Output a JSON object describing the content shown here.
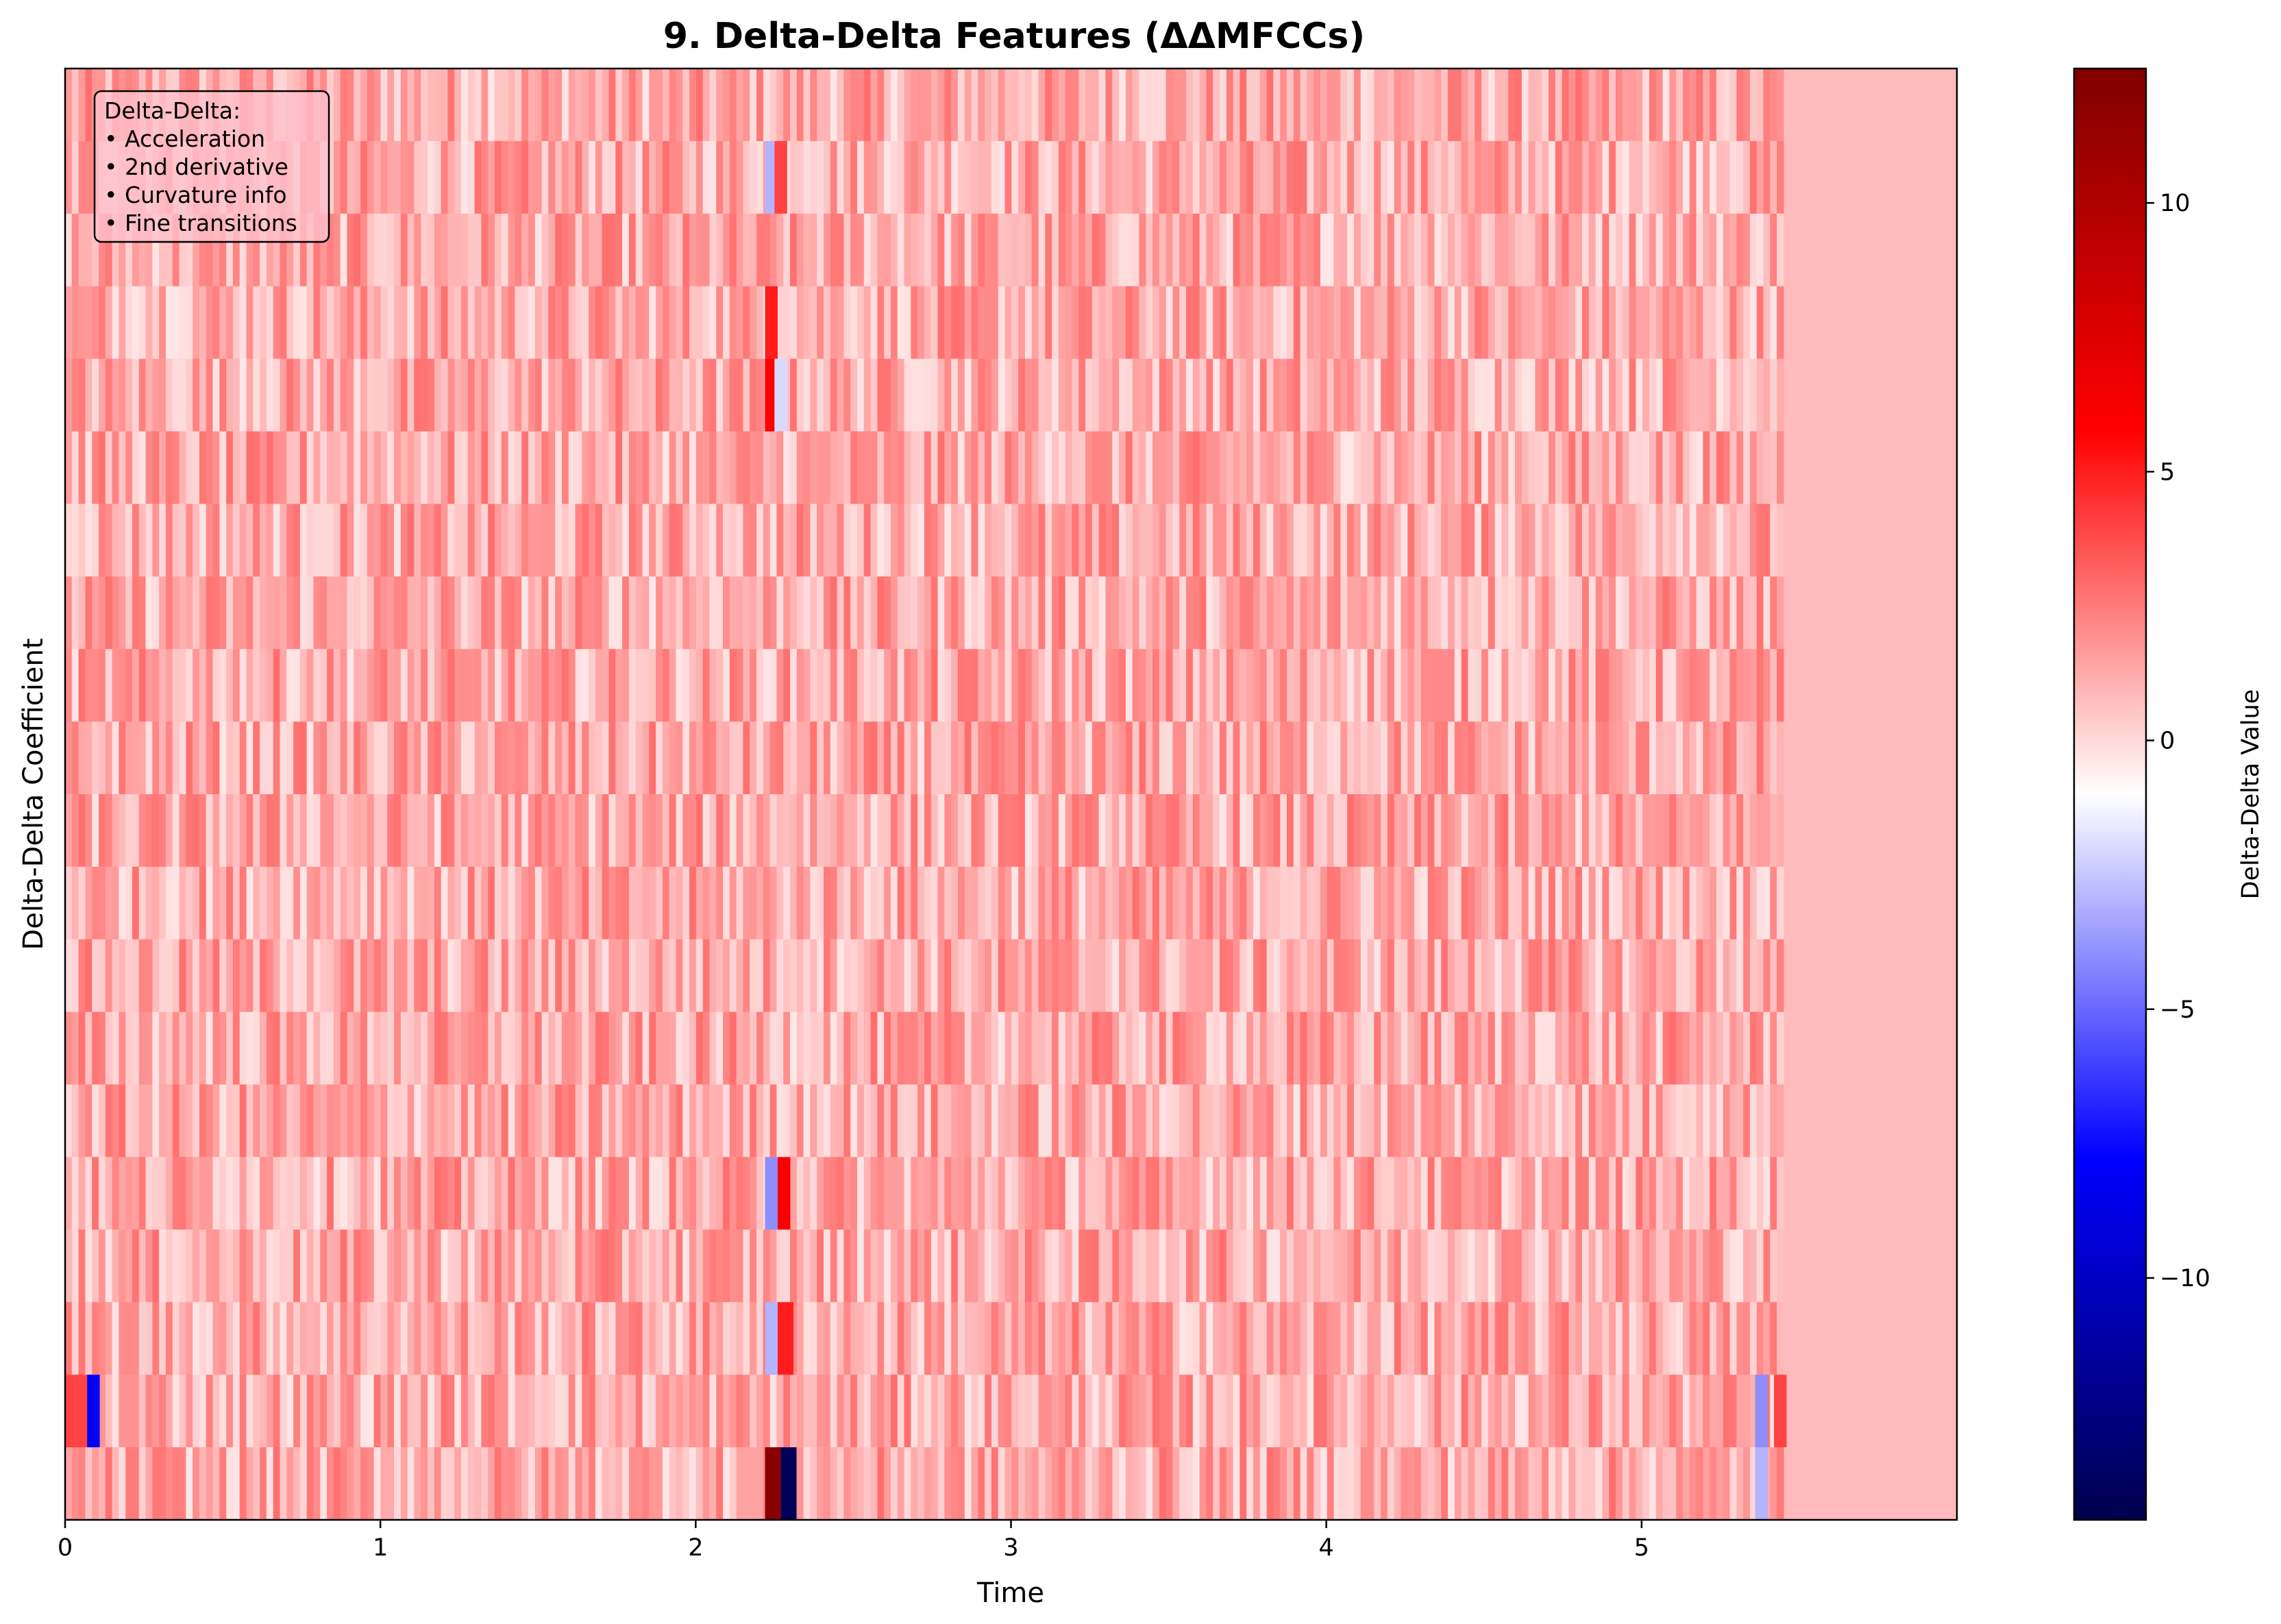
{
  "chart_data": {
    "type": "heatmap",
    "title": "9. Delta-Delta Features (ΔΔMFCCs)",
    "xlabel": "Time",
    "ylabel": "Delta-Delta Coefficient",
    "colorbar_label": "Delta-Delta Value",
    "colormap": "seismic",
    "xlim": [
      0,
      6.0
    ],
    "x_ticks": [
      "0",
      "1",
      "2",
      "3",
      "4",
      "5"
    ],
    "x_tick_values": [
      0,
      1,
      2,
      3,
      4,
      5
    ],
    "n_coefficients": 20,
    "signal_end_time": 5.45,
    "color_range": [
      -14.5,
      12.5
    ],
    "colorbar_ticks": [
      "10",
      "5",
      "0",
      "−5",
      "−10"
    ],
    "colorbar_tick_values": [
      10,
      5,
      0,
      -5,
      -10
    ],
    "background_value": 0.8,
    "features": [
      {
        "row": 19,
        "t0": 2.22,
        "t1": 2.27,
        "value": 12
      },
      {
        "row": 19,
        "t0": 2.27,
        "t1": 2.32,
        "value": -14
      },
      {
        "row": 19,
        "t0": 5.36,
        "t1": 5.4,
        "value": -3
      },
      {
        "row": 18,
        "t0": 0.0,
        "t1": 0.07,
        "value": 4
      },
      {
        "row": 18,
        "t0": 0.07,
        "t1": 0.11,
        "value": -8
      },
      {
        "row": 18,
        "t0": 5.36,
        "t1": 5.4,
        "value": -4
      },
      {
        "row": 18,
        "t0": 5.42,
        "t1": 5.46,
        "value": 4
      },
      {
        "row": 17,
        "t0": 2.22,
        "t1": 2.26,
        "value": -3
      },
      {
        "row": 17,
        "t0": 2.26,
        "t1": 2.31,
        "value": 5
      },
      {
        "row": 15,
        "t0": 2.22,
        "t1": 2.26,
        "value": -4
      },
      {
        "row": 15,
        "t0": 2.26,
        "t1": 2.3,
        "value": 6
      },
      {
        "row": 1,
        "t0": 2.22,
        "t1": 2.25,
        "value": -3
      },
      {
        "row": 1,
        "t0": 2.25,
        "t1": 2.29,
        "value": 4
      },
      {
        "row": 3,
        "t0": 2.22,
        "t1": 2.26,
        "value": 5
      },
      {
        "row": 4,
        "t0": 2.22,
        "t1": 2.25,
        "value": 6
      },
      {
        "row": 4,
        "t0": 2.25,
        "t1": 2.29,
        "value": -2
      }
    ]
  },
  "annotation": {
    "heading": "Delta-Delta:",
    "lines": [
      "• Acceleration",
      "• 2nd derivative",
      "• Curvature info",
      "• Fine transitions"
    ]
  },
  "colors": {
    "low": "#00004c",
    "mid": "#ffffff",
    "high": "#800000",
    "annotation_bg": "#ffc0cb"
  }
}
